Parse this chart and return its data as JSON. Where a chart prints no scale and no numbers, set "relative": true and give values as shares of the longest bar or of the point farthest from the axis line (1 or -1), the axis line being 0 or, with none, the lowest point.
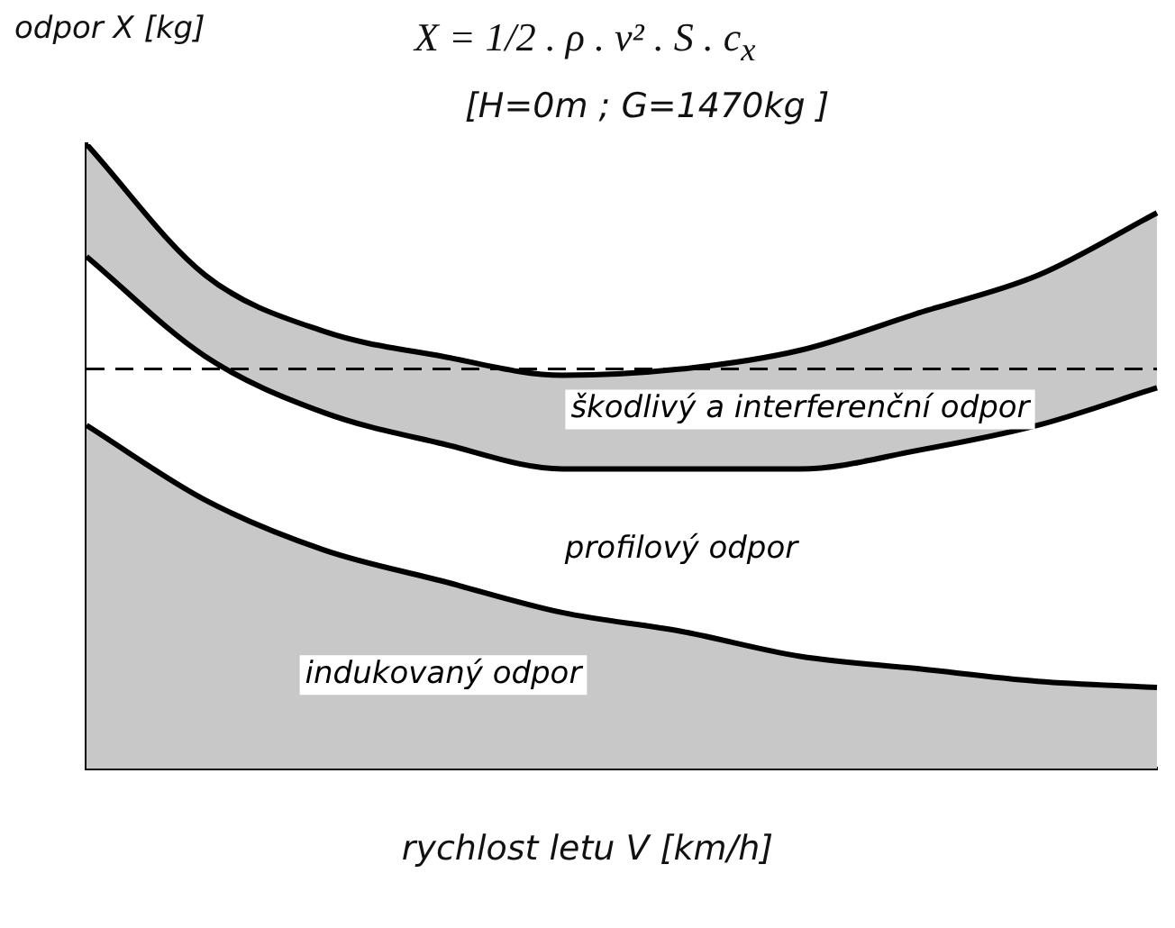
{
  "chart_data": {
    "type": "area",
    "stacked": true,
    "relative": true,
    "title": "X = 1/2 . ρ . v² . S . c$_{x}$",
    "subtitle": "[H=0m ; G=1470kg ]",
    "ylabel": "odpor X [kg]",
    "xlabel": "rychlost letu V [km/h]",
    "categories": [
      null,
      null,
      null,
      null,
      null,
      null,
      null,
      null,
      null,
      null
    ],
    "series": [
      {
        "name": "indukovaný odpor",
        "color": "#c8c8c8",
        "values": [
          0.55,
          0.43,
          0.35,
          0.3,
          0.25,
          0.22,
          0.18,
          0.16,
          0.14,
          0.13
        ]
      },
      {
        "name": "profilový odpor",
        "color": "#ffffff",
        "values": [
          0.27,
          0.23,
          0.22,
          0.22,
          0.23,
          0.26,
          0.3,
          0.35,
          0.41,
          0.48
        ]
      },
      {
        "name": "škodlivý a interferenční odpor",
        "color": "#c8c8c8",
        "values": [
          0.18,
          0.13,
          0.13,
          0.14,
          0.15,
          0.16,
          0.19,
          0.22,
          0.24,
          0.28
        ]
      }
    ],
    "ref_lines": [
      {
        "axis": "y",
        "value": 0.64,
        "line_style": "dashed"
      }
    ],
    "legend": false,
    "grid": false
  }
}
